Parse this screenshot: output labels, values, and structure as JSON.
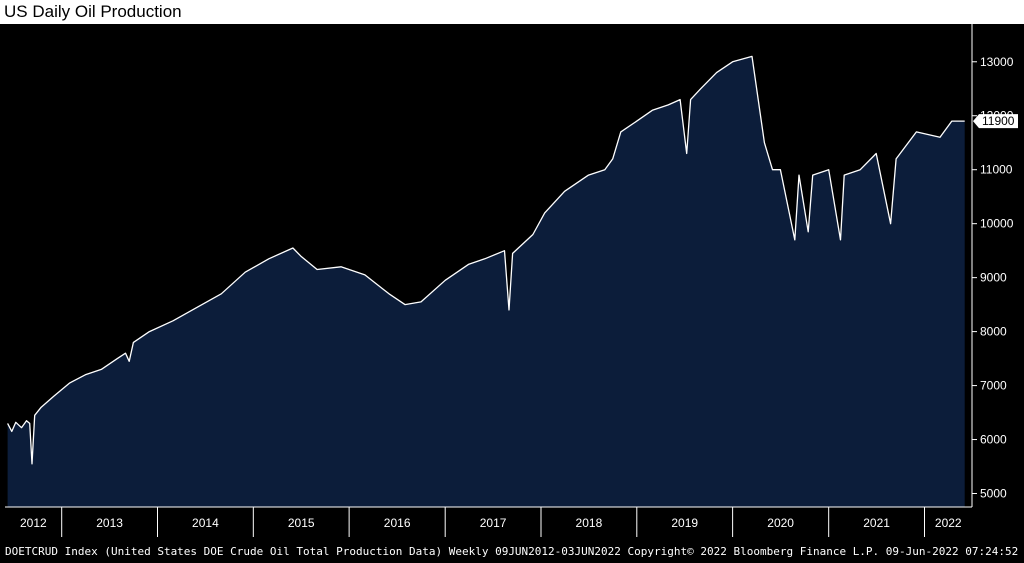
{
  "title": "US Daily Oil Production",
  "chart_data": {
    "type": "area",
    "title": "US Daily Oil Production",
    "xlabel": "",
    "ylabel": "",
    "x_ticks": [
      "2012",
      "2013",
      "2014",
      "2015",
      "2016",
      "2017",
      "2018",
      "2019",
      "2020",
      "2021",
      "2022"
    ],
    "y_ticks": [
      5000,
      6000,
      7000,
      8000,
      9000,
      10000,
      11000,
      12000,
      13000
    ],
    "y_tick_labels": [
      "5000",
      "6000",
      "7000",
      "8000",
      "9000",
      "10000",
      "11000",
      "12000",
      "13000"
    ],
    "ylim": [
      4750,
      13700
    ],
    "xlim": [
      "2012-05-30",
      "2022-07-01"
    ],
    "last_value_label": "11900",
    "last_value": 11900,
    "series": [
      {
        "values": [
          {
            "x": "2012-06-09",
            "y": 6300
          },
          {
            "x": "2012-06-25",
            "y": 6150
          },
          {
            "x": "2012-07-10",
            "y": 6320
          },
          {
            "x": "2012-08-01",
            "y": 6220
          },
          {
            "x": "2012-08-20",
            "y": 6350
          },
          {
            "x": "2012-09-01",
            "y": 6300
          },
          {
            "x": "2012-09-10",
            "y": 5550
          },
          {
            "x": "2012-09-20",
            "y": 6450
          },
          {
            "x": "2012-10-15",
            "y": 6600
          },
          {
            "x": "2012-12-01",
            "y": 6800
          },
          {
            "x": "2013-02-01",
            "y": 7050
          },
          {
            "x": "2013-04-01",
            "y": 7200
          },
          {
            "x": "2013-06-01",
            "y": 7300
          },
          {
            "x": "2013-08-01",
            "y": 7500
          },
          {
            "x": "2013-09-01",
            "y": 7600
          },
          {
            "x": "2013-09-15",
            "y": 7450
          },
          {
            "x": "2013-10-01",
            "y": 7800
          },
          {
            "x": "2013-12-01",
            "y": 8000
          },
          {
            "x": "2014-03-01",
            "y": 8200
          },
          {
            "x": "2014-06-01",
            "y": 8450
          },
          {
            "x": "2014-09-01",
            "y": 8700
          },
          {
            "x": "2014-12-01",
            "y": 9100
          },
          {
            "x": "2015-03-01",
            "y": 9350
          },
          {
            "x": "2015-06-01",
            "y": 9550
          },
          {
            "x": "2015-07-01",
            "y": 9400
          },
          {
            "x": "2015-09-01",
            "y": 9150
          },
          {
            "x": "2015-12-01",
            "y": 9200
          },
          {
            "x": "2016-03-01",
            "y": 9050
          },
          {
            "x": "2016-06-01",
            "y": 8700
          },
          {
            "x": "2016-08-01",
            "y": 8500
          },
          {
            "x": "2016-10-01",
            "y": 8550
          },
          {
            "x": "2017-01-01",
            "y": 8950
          },
          {
            "x": "2017-04-01",
            "y": 9250
          },
          {
            "x": "2017-06-01",
            "y": 9350
          },
          {
            "x": "2017-08-15",
            "y": 9500
          },
          {
            "x": "2017-09-01",
            "y": 8400
          },
          {
            "x": "2017-09-15",
            "y": 9450
          },
          {
            "x": "2017-12-01",
            "y": 9800
          },
          {
            "x": "2018-01-15",
            "y": 10200
          },
          {
            "x": "2018-04-01",
            "y": 10600
          },
          {
            "x": "2018-07-01",
            "y": 10900
          },
          {
            "x": "2018-09-01",
            "y": 11000
          },
          {
            "x": "2018-10-01",
            "y": 11200
          },
          {
            "x": "2018-11-01",
            "y": 11700
          },
          {
            "x": "2019-01-01",
            "y": 11900
          },
          {
            "x": "2019-03-01",
            "y": 12100
          },
          {
            "x": "2019-05-01",
            "y": 12200
          },
          {
            "x": "2019-06-15",
            "y": 12300
          },
          {
            "x": "2019-07-10",
            "y": 11300
          },
          {
            "x": "2019-07-25",
            "y": 12300
          },
          {
            "x": "2019-09-01",
            "y": 12500
          },
          {
            "x": "2019-11-01",
            "y": 12800
          },
          {
            "x": "2020-01-01",
            "y": 13000
          },
          {
            "x": "2020-03-15",
            "y": 13100
          },
          {
            "x": "2020-05-01",
            "y": 11500
          },
          {
            "x": "2020-06-01",
            "y": 11000
          },
          {
            "x": "2020-07-01",
            "y": 11000
          },
          {
            "x": "2020-08-25",
            "y": 9700
          },
          {
            "x": "2020-09-10",
            "y": 10900
          },
          {
            "x": "2020-10-15",
            "y": 9850
          },
          {
            "x": "2020-11-01",
            "y": 10900
          },
          {
            "x": "2021-01-01",
            "y": 11000
          },
          {
            "x": "2021-02-15",
            "y": 9700
          },
          {
            "x": "2021-03-01",
            "y": 10900
          },
          {
            "x": "2021-05-01",
            "y": 11000
          },
          {
            "x": "2021-07-01",
            "y": 11300
          },
          {
            "x": "2021-08-25",
            "y": 10000
          },
          {
            "x": "2021-09-15",
            "y": 11200
          },
          {
            "x": "2021-12-01",
            "y": 11700
          },
          {
            "x": "2022-03-01",
            "y": 11600
          },
          {
            "x": "2022-04-15",
            "y": 11900
          },
          {
            "x": "2022-06-03",
            "y": 11900
          }
        ]
      }
    ],
    "colors": {
      "background": "#000000",
      "area_fill": "#0c1d3a",
      "line": "#ffffff",
      "axis": "#ffffff",
      "value_box": "#ffffff"
    }
  },
  "footer": {
    "text": "DOETCRUD Index (United States DOE Crude Oil Total Production Data)  Weekly 09JUN2012-03JUN2022 Copyright© 2022 Bloomberg Finance L.P. 09-Jun-2022 07:24:52"
  }
}
